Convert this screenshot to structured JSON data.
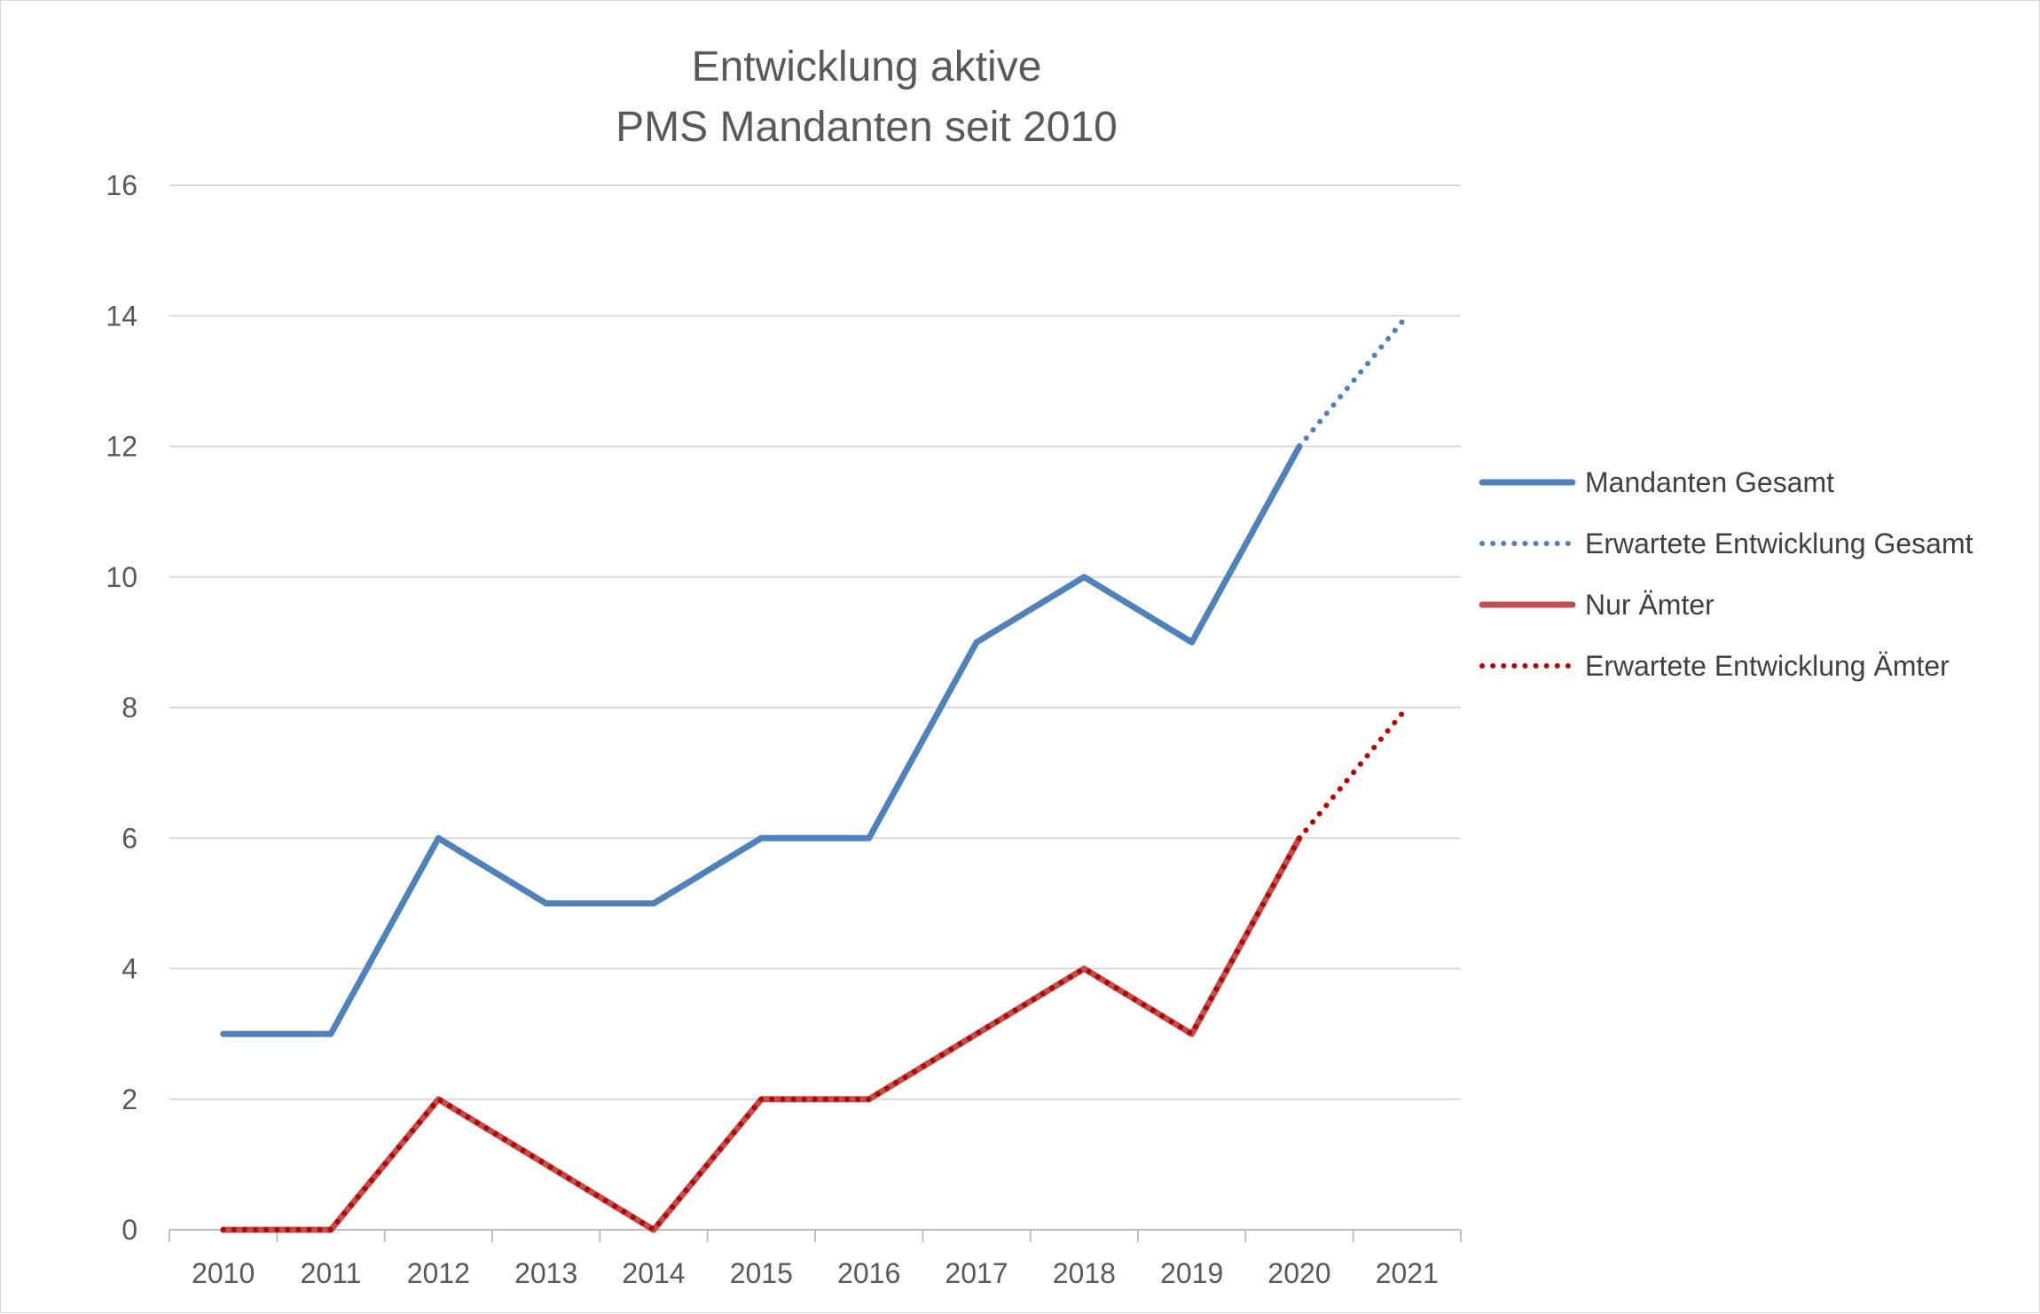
{
  "chart_data": {
    "type": "line",
    "title_lines": [
      "Entwicklung aktive",
      "PMS Mandanten seit 2010"
    ],
    "categories": [
      "2010",
      "2011",
      "2012",
      "2013",
      "2014",
      "2015",
      "2016",
      "2017",
      "2018",
      "2019",
      "2020",
      "2021"
    ],
    "ylim": [
      0,
      16
    ],
    "yticks": [
      "0",
      "2",
      "4",
      "6",
      "8",
      "10",
      "12",
      "14",
      "16"
    ],
    "grid": true,
    "legend_position": "right",
    "series": [
      {
        "name": "Mandanten Gesamt",
        "color": "#4f81bd",
        "style": "solid",
        "values": [
          3,
          3,
          6,
          5,
          5,
          6,
          6,
          9,
          10,
          9,
          12,
          null
        ]
      },
      {
        "name": "Erwartete Entwicklung Gesamt",
        "color": "#4f81bd",
        "style": "dotted",
        "values": [
          null,
          null,
          null,
          null,
          null,
          null,
          null,
          null,
          null,
          null,
          12,
          14
        ]
      },
      {
        "name": "Nur Ämter",
        "color": "#c0504d",
        "style": "solid",
        "values": [
          0,
          0,
          2,
          1,
          0,
          2,
          2,
          3,
          4,
          3,
          6,
          null
        ]
      },
      {
        "name": "Erwartete Entwicklung Ämter",
        "color": "#c00000",
        "style": "dotted",
        "values": [
          0,
          0,
          2,
          1,
          0,
          2,
          2,
          3,
          4,
          3,
          6,
          8
        ]
      }
    ]
  }
}
